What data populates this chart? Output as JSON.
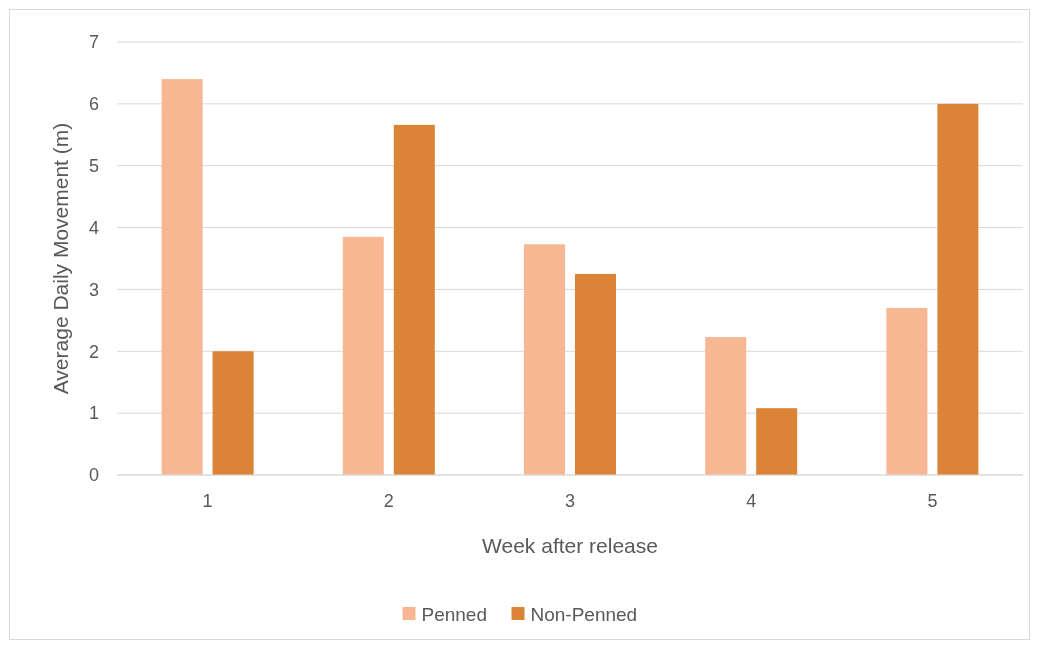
{
  "chart_data": {
    "type": "bar",
    "xlabel": "Week after release",
    "ylabel": "Average Daily Movement (m)",
    "categories": [
      "1",
      "2",
      "3",
      "4",
      "5"
    ],
    "series": [
      {
        "name": "Penned",
        "color": "#f8b793",
        "values": [
          6.4,
          3.85,
          3.73,
          2.23,
          2.7
        ]
      },
      {
        "name": "Non-Penned",
        "color": "#db8336",
        "values": [
          2.0,
          5.66,
          3.25,
          1.08,
          6.0
        ]
      }
    ],
    "ylim": [
      0,
      7
    ],
    "yticks": [
      0,
      1,
      2,
      3,
      4,
      5,
      6,
      7
    ],
    "grid": "y",
    "legend": "bottom"
  }
}
